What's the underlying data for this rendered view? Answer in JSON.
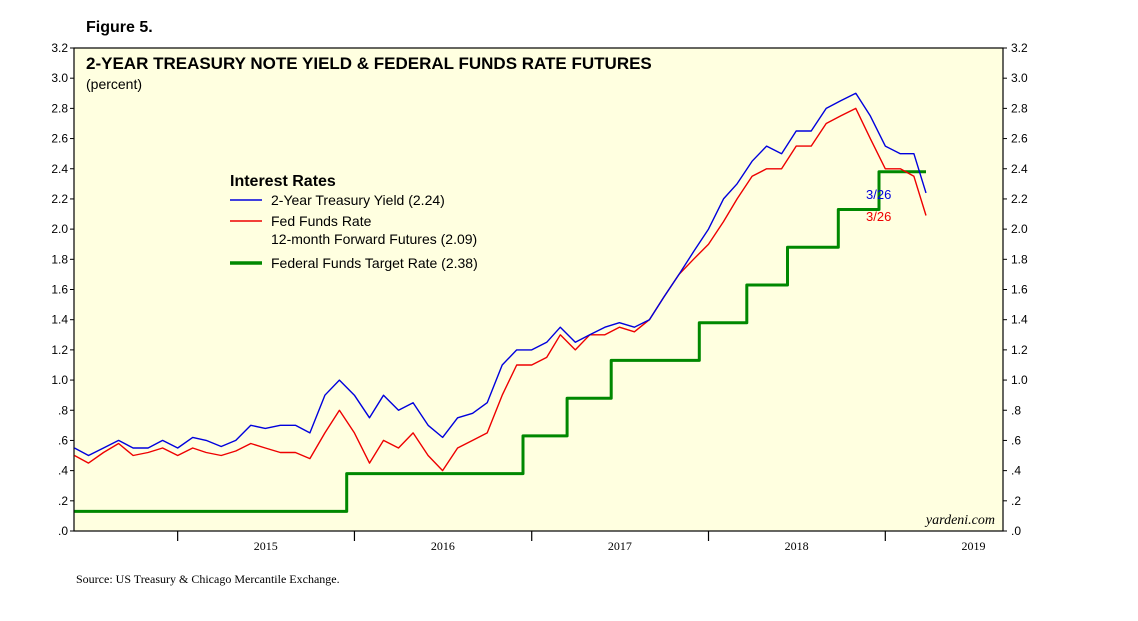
{
  "figure_label": "Figure 5.",
  "source_note": "Source: US Treasury & Chicago Mercantile Exchange.",
  "brand": "yardeni.com",
  "chart_data": {
    "type": "line",
    "title": "2-YEAR TREASURY NOTE YIELD & FEDERAL FUNDS RATE FUTURES",
    "subtitle": "(percent)",
    "ylim": [
      0,
      3.2
    ],
    "y_ticks": [
      ".0",
      ".2",
      ".4",
      ".6",
      ".8",
      "1.0",
      "1.2",
      "1.4",
      "1.6",
      "1.8",
      "2.0",
      "2.2",
      "2.4",
      "2.6",
      "2.8",
      "3.0",
      "3.2"
    ],
    "x_range": [
      "2014-06-01",
      "2019-09-01"
    ],
    "x_year_labels": [
      "2015",
      "2016",
      "2017",
      "2018",
      "2019"
    ],
    "legend": {
      "title": "Interest Rates",
      "position": "upper-left inside plot"
    },
    "grid": false,
    "background": "#ffffe0",
    "series": [
      {
        "key": "treasury",
        "legend_label": "2-Year Treasury Yield (2.24)",
        "color": "#0000dd",
        "end_label": "3/26",
        "points": [
          [
            "2014-06-02",
            0.55
          ],
          [
            "2014-07-01",
            0.5
          ],
          [
            "2014-08-01",
            0.55
          ],
          [
            "2014-09-01",
            0.6
          ],
          [
            "2014-10-01",
            0.55
          ],
          [
            "2014-11-01",
            0.55
          ],
          [
            "2014-12-01",
            0.6
          ],
          [
            "2015-01-01",
            0.55
          ],
          [
            "2015-02-01",
            0.62
          ],
          [
            "2015-03-01",
            0.6
          ],
          [
            "2015-04-01",
            0.56
          ],
          [
            "2015-05-01",
            0.6
          ],
          [
            "2015-06-01",
            0.7
          ],
          [
            "2015-07-01",
            0.68
          ],
          [
            "2015-08-01",
            0.7
          ],
          [
            "2015-09-01",
            0.7
          ],
          [
            "2015-10-01",
            0.65
          ],
          [
            "2015-11-01",
            0.9
          ],
          [
            "2015-12-01",
            1.0
          ],
          [
            "2016-01-01",
            0.9
          ],
          [
            "2016-02-01",
            0.75
          ],
          [
            "2016-03-01",
            0.9
          ],
          [
            "2016-04-01",
            0.8
          ],
          [
            "2016-05-01",
            0.85
          ],
          [
            "2016-06-01",
            0.7
          ],
          [
            "2016-07-01",
            0.62
          ],
          [
            "2016-08-01",
            0.75
          ],
          [
            "2016-09-01",
            0.78
          ],
          [
            "2016-10-01",
            0.85
          ],
          [
            "2016-11-01",
            1.1
          ],
          [
            "2016-12-01",
            1.2
          ],
          [
            "2017-01-01",
            1.2
          ],
          [
            "2017-02-01",
            1.25
          ],
          [
            "2017-03-01",
            1.35
          ],
          [
            "2017-04-01",
            1.25
          ],
          [
            "2017-05-01",
            1.3
          ],
          [
            "2017-06-01",
            1.35
          ],
          [
            "2017-07-01",
            1.38
          ],
          [
            "2017-08-01",
            1.35
          ],
          [
            "2017-09-01",
            1.4
          ],
          [
            "2017-10-01",
            1.55
          ],
          [
            "2017-11-01",
            1.7
          ],
          [
            "2017-12-01",
            1.85
          ],
          [
            "2018-01-01",
            2.0
          ],
          [
            "2018-02-01",
            2.2
          ],
          [
            "2018-03-01",
            2.3
          ],
          [
            "2018-04-01",
            2.45
          ],
          [
            "2018-05-01",
            2.55
          ],
          [
            "2018-06-01",
            2.5
          ],
          [
            "2018-07-01",
            2.65
          ],
          [
            "2018-08-01",
            2.65
          ],
          [
            "2018-09-01",
            2.8
          ],
          [
            "2018-10-01",
            2.85
          ],
          [
            "2018-11-01",
            2.9
          ],
          [
            "2018-12-01",
            2.75
          ],
          [
            "2019-01-01",
            2.55
          ],
          [
            "2019-02-01",
            2.5
          ],
          [
            "2019-03-01",
            2.5
          ],
          [
            "2019-03-26",
            2.24
          ]
        ]
      },
      {
        "key": "futures",
        "legend_label": "Fed Funds Rate",
        "legend_label_line2": "12-month Forward Futures (2.09)",
        "color": "#ee0000",
        "end_label": "3/26",
        "points": [
          [
            "2014-06-02",
            0.5
          ],
          [
            "2014-07-01",
            0.45
          ],
          [
            "2014-08-01",
            0.52
          ],
          [
            "2014-09-01",
            0.58
          ],
          [
            "2014-10-01",
            0.5
          ],
          [
            "2014-11-01",
            0.52
          ],
          [
            "2014-12-01",
            0.55
          ],
          [
            "2015-01-01",
            0.5
          ],
          [
            "2015-02-01",
            0.55
          ],
          [
            "2015-03-01",
            0.52
          ],
          [
            "2015-04-01",
            0.5
          ],
          [
            "2015-05-01",
            0.53
          ],
          [
            "2015-06-01",
            0.58
          ],
          [
            "2015-07-01",
            0.55
          ],
          [
            "2015-08-01",
            0.52
          ],
          [
            "2015-09-01",
            0.52
          ],
          [
            "2015-10-01",
            0.48
          ],
          [
            "2015-11-01",
            0.65
          ],
          [
            "2015-12-01",
            0.8
          ],
          [
            "2016-01-01",
            0.65
          ],
          [
            "2016-02-01",
            0.45
          ],
          [
            "2016-03-01",
            0.6
          ],
          [
            "2016-04-01",
            0.55
          ],
          [
            "2016-05-01",
            0.65
          ],
          [
            "2016-06-01",
            0.5
          ],
          [
            "2016-07-01",
            0.4
          ],
          [
            "2016-08-01",
            0.55
          ],
          [
            "2016-09-01",
            0.6
          ],
          [
            "2016-10-01",
            0.65
          ],
          [
            "2016-11-01",
            0.9
          ],
          [
            "2016-12-01",
            1.1
          ],
          [
            "2017-01-01",
            1.1
          ],
          [
            "2017-02-01",
            1.15
          ],
          [
            "2017-03-01",
            1.3
          ],
          [
            "2017-04-01",
            1.2
          ],
          [
            "2017-05-01",
            1.3
          ],
          [
            "2017-06-01",
            1.3
          ],
          [
            "2017-07-01",
            1.35
          ],
          [
            "2017-08-01",
            1.32
          ],
          [
            "2017-09-01",
            1.4
          ],
          [
            "2017-10-01",
            1.55
          ],
          [
            "2017-11-01",
            1.7
          ],
          [
            "2017-12-01",
            1.8
          ],
          [
            "2018-01-01",
            1.9
          ],
          [
            "2018-02-01",
            2.05
          ],
          [
            "2018-03-01",
            2.2
          ],
          [
            "2018-04-01",
            2.35
          ],
          [
            "2018-05-01",
            2.4
          ],
          [
            "2018-06-01",
            2.4
          ],
          [
            "2018-07-01",
            2.55
          ],
          [
            "2018-08-01",
            2.55
          ],
          [
            "2018-09-01",
            2.7
          ],
          [
            "2018-10-01",
            2.75
          ],
          [
            "2018-11-01",
            2.8
          ],
          [
            "2018-12-01",
            2.6
          ],
          [
            "2019-01-01",
            2.4
          ],
          [
            "2019-02-01",
            2.4
          ],
          [
            "2019-03-01",
            2.35
          ],
          [
            "2019-03-26",
            2.09
          ]
        ]
      },
      {
        "key": "target",
        "legend_label": "Federal Funds Target Rate (2.38)",
        "color": "#008800",
        "step": true,
        "points": [
          [
            "2014-06-02",
            0.13
          ],
          [
            "2015-12-16",
            0.38
          ],
          [
            "2016-12-14",
            0.63
          ],
          [
            "2017-03-15",
            0.88
          ],
          [
            "2017-06-14",
            1.13
          ],
          [
            "2017-12-13",
            1.38
          ],
          [
            "2018-03-21",
            1.63
          ],
          [
            "2018-06-13",
            1.88
          ],
          [
            "2018-09-26",
            2.13
          ],
          [
            "2018-12-19",
            2.38
          ],
          [
            "2019-03-26",
            2.38
          ]
        ]
      }
    ]
  }
}
